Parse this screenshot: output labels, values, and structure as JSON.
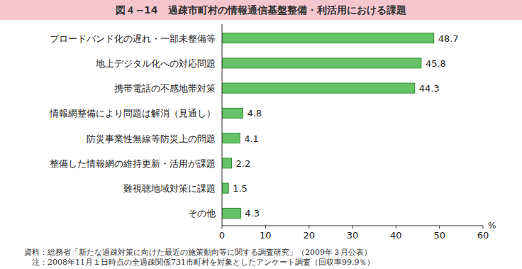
{
  "chart_data": {
    "type": "bar",
    "orientation": "horizontal",
    "title": "図４−14　過疎市町村の情報通信基盤整備・利活用における課題",
    "categories": [
      "ブロードバンド化の遅れ・一部未整備等",
      "地上デジタル化への対応問題",
      "携帯電話の不感地帯対策",
      "情報網整備により問題は解消（見通し）",
      "防災事業性無線等防災上の問題",
      "整備した情報網の維持更新・活用が課題",
      "難視聴地域対策に課題",
      "その他"
    ],
    "values": [
      48.7,
      45.8,
      44.3,
      4.8,
      4.1,
      2.2,
      1.5,
      4.3
    ],
    "color": "#66c266",
    "xlabel": "%",
    "xlim": [
      0,
      60
    ],
    "xticks": [
      0,
      10,
      20,
      30,
      40,
      50,
      60
    ],
    "data_labels": true,
    "grid": false,
    "annotations": [
      "資料：総務省「新たな過疎対策に向けた最近の施策動向等に関する調査研究」（2009年３月公表）",
      "　注：2008年11月１日時点の全過疎関係731市町村を対象としたアンケート調査（回収率99.9％）"
    ]
  }
}
